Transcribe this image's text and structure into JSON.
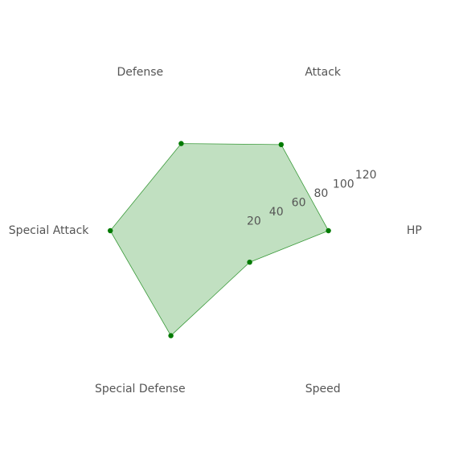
{
  "chart_data": {
    "type": "radar",
    "categories": [
      "HP",
      "Attack",
      "Defense",
      "Special Attack",
      "Special Defense",
      "Speed"
    ],
    "values": [
      80,
      82,
      83,
      100,
      100,
      30
    ],
    "rlim": [
      0,
      130
    ],
    "rticks": [
      20,
      40,
      60,
      80,
      100,
      120
    ],
    "fill_color": "#c1e0c1",
    "line_color": "#3a9a3a",
    "marker_color": "#007a00",
    "grid": false
  }
}
